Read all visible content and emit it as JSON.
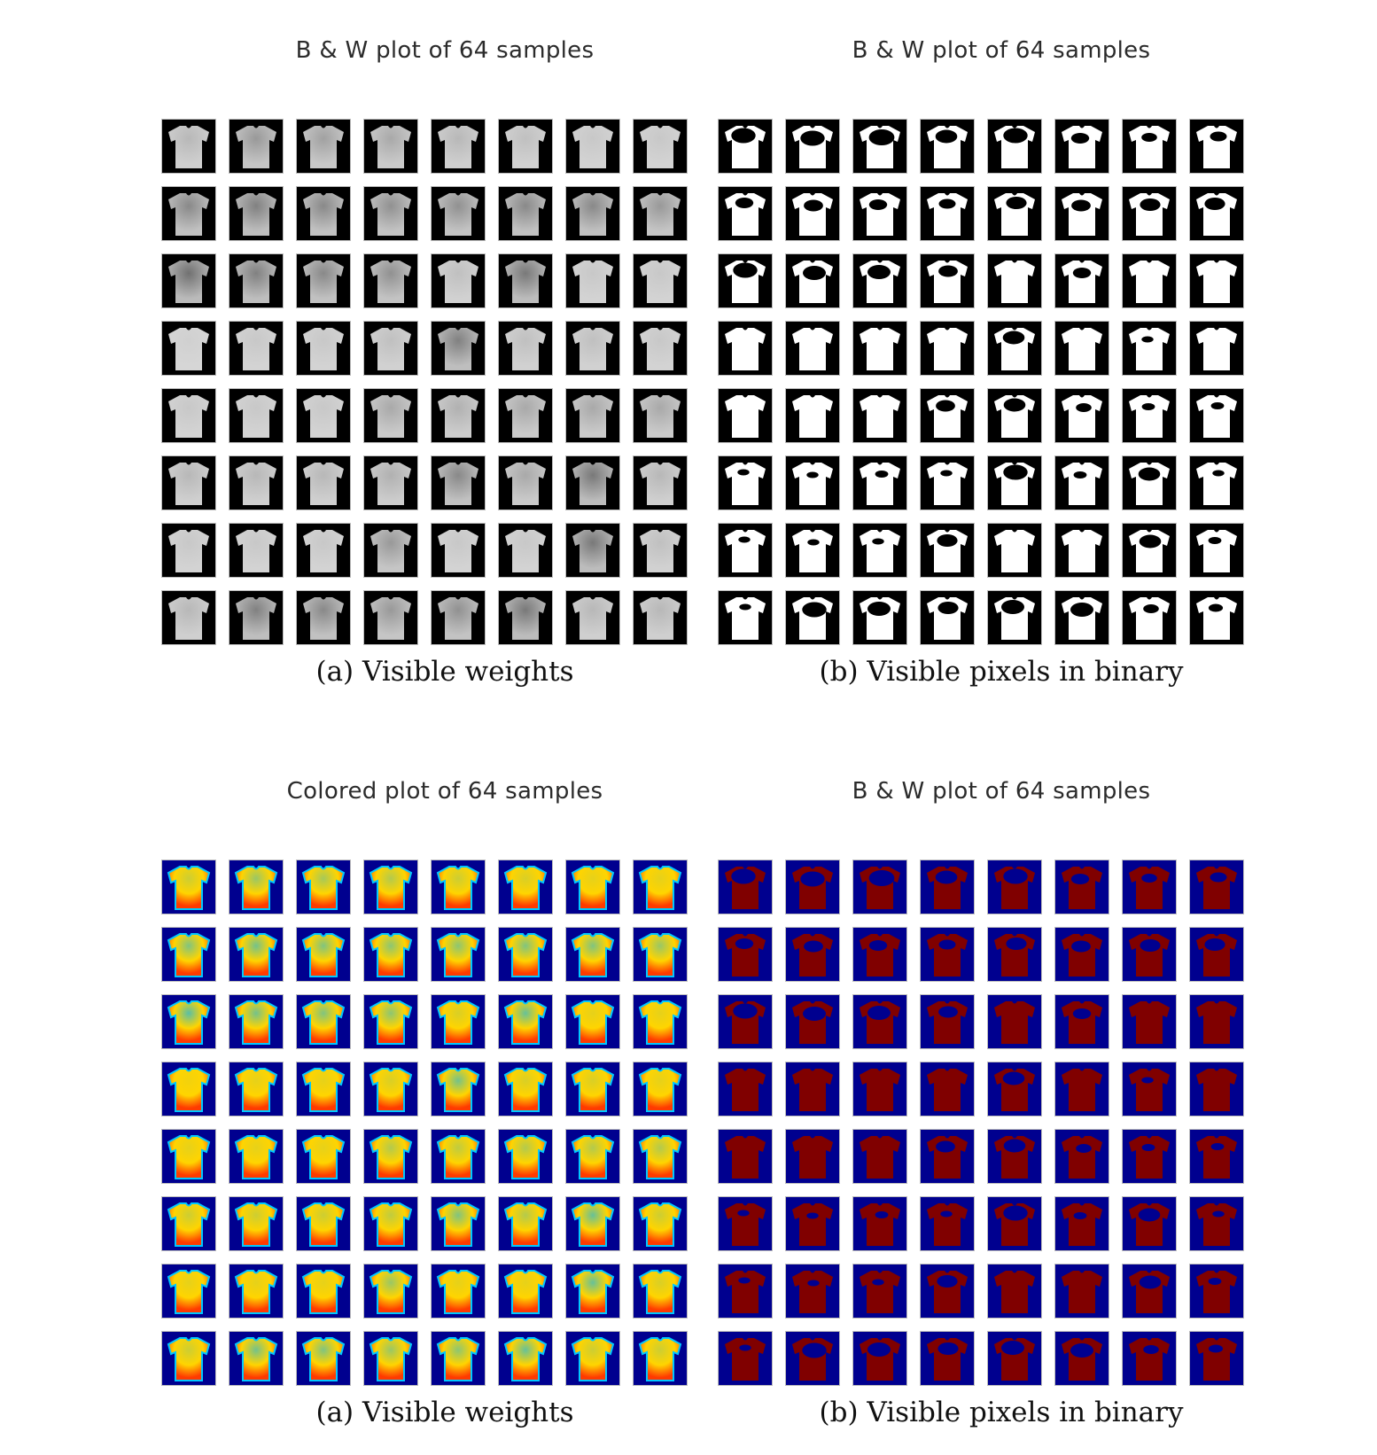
{
  "panels": [
    {
      "id": "p1",
      "title": "B & W plot of 64 samples",
      "caption": "(a) Visible weights",
      "style": "gray",
      "shade": [
        0.2,
        0.4,
        0.35,
        0.3,
        0.2,
        0.15,
        0.1,
        0.1,
        0.5,
        0.55,
        0.5,
        0.45,
        0.45,
        0.5,
        0.5,
        0.4,
        0.65,
        0.55,
        0.5,
        0.45,
        0.15,
        0.6,
        0.1,
        0.1,
        0.05,
        0.1,
        0.1,
        0.15,
        0.55,
        0.15,
        0.15,
        0.1,
        0.1,
        0.1,
        0.1,
        0.3,
        0.25,
        0.3,
        0.3,
        0.3,
        0.2,
        0.2,
        0.2,
        0.25,
        0.5,
        0.3,
        0.6,
        0.2,
        0.1,
        0.1,
        0.1,
        0.4,
        0.1,
        0.1,
        0.6,
        0.15,
        0.2,
        0.55,
        0.5,
        0.4,
        0.45,
        0.6,
        0.2,
        0.2
      ]
    },
    {
      "id": "p2",
      "title": "B & W plot of 64 samples",
      "caption": "(b) Visible pixels in binary",
      "style": "binary",
      "shade": [
        0.55,
        0.55,
        0.6,
        0.45,
        0.55,
        0.3,
        0.2,
        0.25,
        0.3,
        0.35,
        0.3,
        0.25,
        0.4,
        0.35,
        0.4,
        0.4,
        0.55,
        0.5,
        0.5,
        0.35,
        0.0,
        0.3,
        0.0,
        0.0,
        0.0,
        0.0,
        0.0,
        0.0,
        0.45,
        0.0,
        0.05,
        0.0,
        0.0,
        0.0,
        0.0,
        0.35,
        0.45,
        0.2,
        0.1,
        0.1,
        0.05,
        0.05,
        0.1,
        0.05,
        0.55,
        0.1,
        0.45,
        0.05,
        0.05,
        0.05,
        0.05,
        0.4,
        0.0,
        0.0,
        0.45,
        0.1,
        0.05,
        0.55,
        0.5,
        0.4,
        0.5,
        0.5,
        0.2,
        0.15
      ]
    },
    {
      "id": "p3",
      "title": "Colored plot of 64 samples",
      "caption": "(a) Visible weights",
      "style": "jet",
      "shade": [
        0.2,
        0.4,
        0.35,
        0.3,
        0.2,
        0.15,
        0.1,
        0.1,
        0.5,
        0.55,
        0.5,
        0.45,
        0.45,
        0.5,
        0.5,
        0.4,
        0.65,
        0.55,
        0.5,
        0.45,
        0.15,
        0.6,
        0.1,
        0.1,
        0.05,
        0.1,
        0.1,
        0.15,
        0.55,
        0.15,
        0.15,
        0.1,
        0.1,
        0.1,
        0.1,
        0.3,
        0.25,
        0.3,
        0.3,
        0.3,
        0.2,
        0.2,
        0.2,
        0.25,
        0.5,
        0.3,
        0.6,
        0.2,
        0.1,
        0.1,
        0.1,
        0.4,
        0.1,
        0.1,
        0.6,
        0.15,
        0.2,
        0.55,
        0.5,
        0.4,
        0.45,
        0.6,
        0.2,
        0.2
      ]
    },
    {
      "id": "p4",
      "title": "B & W plot of 64 samples",
      "caption": "(b) Visible pixels in binary",
      "style": "jet-binary",
      "shade": [
        0.55,
        0.55,
        0.6,
        0.45,
        0.55,
        0.3,
        0.2,
        0.25,
        0.3,
        0.35,
        0.3,
        0.25,
        0.4,
        0.35,
        0.4,
        0.4,
        0.55,
        0.5,
        0.5,
        0.35,
        0.0,
        0.3,
        0.0,
        0.0,
        0.0,
        0.0,
        0.0,
        0.0,
        0.45,
        0.0,
        0.05,
        0.0,
        0.0,
        0.0,
        0.0,
        0.35,
        0.45,
        0.2,
        0.1,
        0.1,
        0.05,
        0.05,
        0.1,
        0.05,
        0.55,
        0.1,
        0.45,
        0.05,
        0.05,
        0.05,
        0.05,
        0.4,
        0.0,
        0.0,
        0.45,
        0.1,
        0.05,
        0.55,
        0.5,
        0.4,
        0.5,
        0.5,
        0.2,
        0.15
      ]
    }
  ],
  "colors": {
    "gray_background": "#000000",
    "gray_shirt_light": "#d8d8d8",
    "gray_shirt_dark": "#3a3a3a",
    "binary_background": "#000000",
    "binary_shirt": "#ffffff",
    "binary_blot": "#000000",
    "jet_background": "#00008f",
    "jet_edge": "#00c8ff",
    "jet_shirt_hot": "#ff3a00",
    "jet_shirt_warm": "#ffd400",
    "jet_blot": "#00b4ff",
    "jetbin_background": "#00008f",
    "jetbin_shirt": "#800000",
    "jetbin_blot": "#00008f"
  },
  "icons": {
    "sample_tile": "tshirt-sample-icon"
  }
}
